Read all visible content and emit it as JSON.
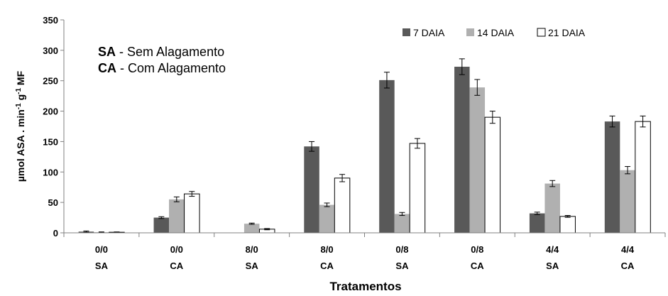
{
  "chart_data": {
    "type": "bar",
    "categories": [
      {
        "line1": "0/0",
        "line2": "SA"
      },
      {
        "line1": "0/0",
        "line2": "CA"
      },
      {
        "line1": "8/0",
        "line2": "SA"
      },
      {
        "line1": "8/0",
        "line2": "CA"
      },
      {
        "line1": "0/8",
        "line2": "SA"
      },
      {
        "line1": "0/8",
        "line2": "CA"
      },
      {
        "line1": "4/4",
        "line2": "SA"
      },
      {
        "line1": "4/4",
        "line2": "CA"
      }
    ],
    "series": [
      {
        "name": "7 DAIA",
        "color": "#595959",
        "values": [
          2,
          25,
          0,
          142,
          251,
          273,
          32,
          183
        ],
        "errors": [
          1,
          1.5,
          0,
          8,
          13,
          13,
          2,
          9
        ]
      },
      {
        "name": "14 DAIA",
        "color": "#b0b0b0",
        "values": [
          1,
          55,
          15,
          46,
          31,
          239,
          81,
          103
        ],
        "errors": [
          0.5,
          4,
          1,
          3,
          2.5,
          13,
          5,
          6
        ]
      },
      {
        "name": "21 DAIA",
        "color": "#ffffff",
        "values": [
          1,
          64,
          6,
          90,
          147,
          190,
          27,
          183
        ],
        "errors": [
          0.5,
          4,
          1,
          6,
          8,
          10,
          1.5,
          9
        ]
      }
    ],
    "ylabel": "µmol ASA . min-1 g-1 MF",
    "ylabel_parts": [
      {
        "text": "µmol ASA . min",
        "sup": false
      },
      {
        "text": "-1",
        "sup": true
      },
      {
        "text": " g",
        "sup": false
      },
      {
        "text": "-1",
        "sup": true
      },
      {
        "text": " MF",
        "sup": false
      }
    ],
    "xlabel": "Tratamentos",
    "ylim": [
      0,
      350
    ],
    "yticks": [
      0,
      50,
      100,
      150,
      200,
      250,
      300,
      350
    ],
    "grid": false,
    "legend_position": "top-right",
    "annotations": [
      {
        "abbr": "SA",
        "text": " - Sem Alagamento"
      },
      {
        "abbr": "CA",
        "text": " - Com Alagamento"
      }
    ]
  }
}
